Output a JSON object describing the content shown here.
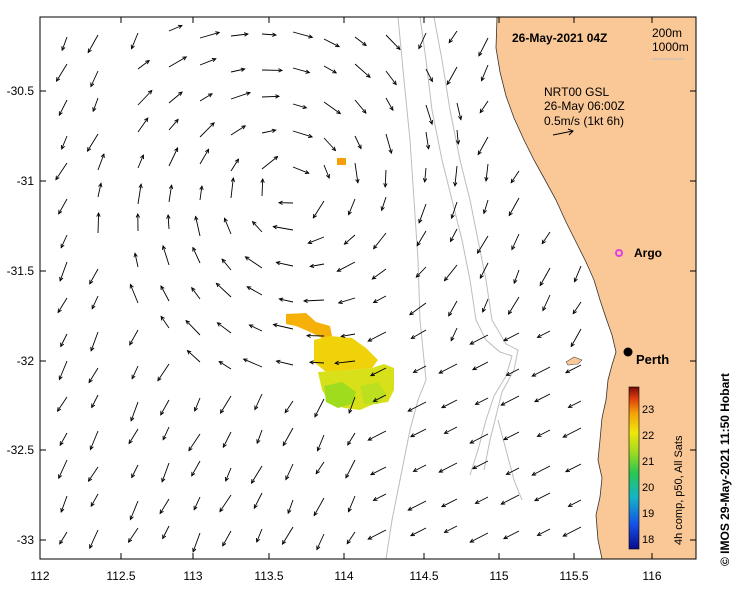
{
  "header": {
    "date_label": "26-May-2021 04Z"
  },
  "depth_legend": {
    "line1": "200m",
    "line2": "1000m"
  },
  "current_legend": {
    "line1": "NRT00 GSL",
    "line2": "26-May 06:00Z",
    "line3": "0.5m/s (1kt 6h)"
  },
  "places": {
    "argo": "Argo",
    "perth": "Perth"
  },
  "colorbar": {
    "caption": "4h comp, p50, All Sats",
    "ticks": [
      "23",
      "22",
      "21",
      "20",
      "19",
      "18"
    ]
  },
  "credit": "© IMOS 29-May-2021 11:50 Hobart",
  "axes": {
    "x_ticks": [
      "112",
      "112.5",
      "113",
      "113.5",
      "114",
      "114.5",
      "115",
      "115.5",
      "116"
    ],
    "y_ticks": [
      "-30.5",
      "-31",
      "-31.5",
      "-32",
      "-32.5",
      "-33"
    ]
  },
  "colors": {
    "land": "#fac796",
    "contour": "#bdbdbd",
    "argo_marker": "#e040e0"
  }
}
